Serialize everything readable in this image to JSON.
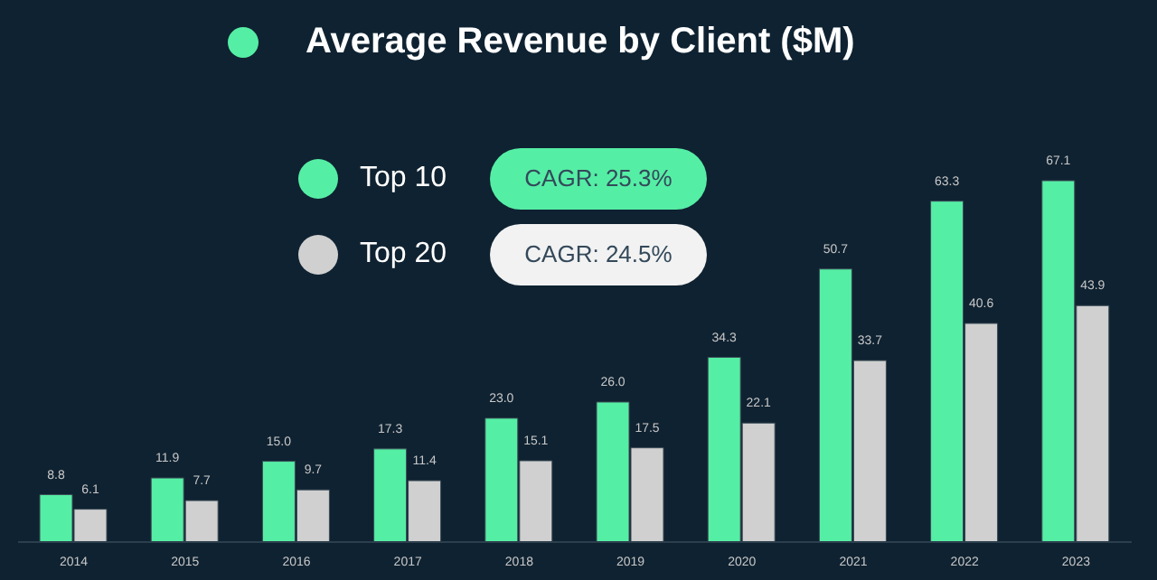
{
  "chart_data": {
    "type": "bar",
    "title": "Average Revenue by Client ($M)",
    "categories": [
      "2014",
      "2015",
      "2016",
      "2017",
      "2018",
      "2019",
      "2020",
      "2021",
      "2022",
      "2023"
    ],
    "series": [
      {
        "name": "Top 10",
        "color": "#55eea5",
        "values": [
          8.8,
          11.9,
          15.0,
          17.3,
          23.0,
          26.0,
          34.3,
          50.7,
          63.3,
          67.1
        ],
        "value_labels": [
          "8.8",
          "11.9",
          "15.0",
          "17.3",
          "23.0",
          "26.0",
          "34.3",
          "50.7",
          "63.3",
          "67.1"
        ]
      },
      {
        "name": "Top 20",
        "color": "#d0d0d0",
        "values": [
          6.1,
          7.7,
          9.7,
          11.4,
          15.1,
          17.5,
          22.1,
          33.7,
          40.6,
          43.9
        ],
        "value_labels": [
          "6.1",
          "7.7",
          "9.7",
          "11.4",
          "15.1",
          "17.5",
          "22.1",
          "33.7",
          "40.6",
          "43.9"
        ]
      }
    ],
    "legend": "top left",
    "annotations": [
      "CAGR: 25.3%",
      "CAGR: 24.5%"
    ]
  }
}
